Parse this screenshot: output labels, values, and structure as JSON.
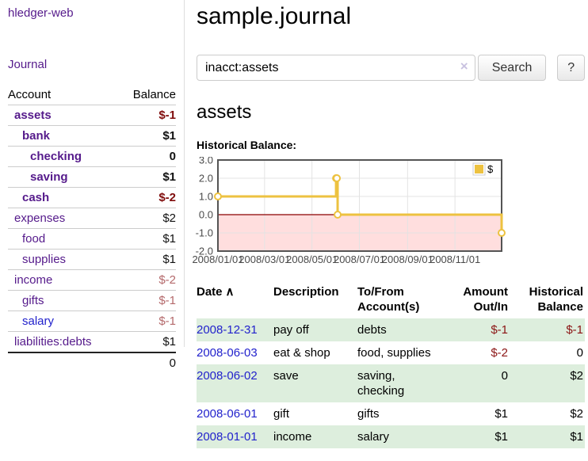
{
  "brand": "hledger-web",
  "nav": {
    "journal_label": "Journal"
  },
  "sidebar_table": {
    "headers": {
      "account": "Account",
      "balance": "Balance"
    },
    "rows": [
      {
        "name": "assets",
        "balance": "$-1",
        "depth": 0,
        "bold": true,
        "link_color": "purple",
        "balance_color": "darkred"
      },
      {
        "name": "bank",
        "balance": "$1",
        "depth": 1,
        "bold": true,
        "link_color": "purple",
        "balance_color": "black"
      },
      {
        "name": "checking",
        "balance": "0",
        "depth": 2,
        "bold": true,
        "link_color": "purple",
        "balance_color": "black"
      },
      {
        "name": "saving",
        "balance": "$1",
        "depth": 2,
        "bold": true,
        "link_color": "purple",
        "balance_color": "black"
      },
      {
        "name": "cash",
        "balance": "$-2",
        "depth": 1,
        "bold": true,
        "link_color": "purple",
        "balance_color": "darkred"
      },
      {
        "name": "expenses",
        "balance": "$2",
        "depth": 0,
        "bold": false,
        "link_color": "purple",
        "balance_color": "black"
      },
      {
        "name": "food",
        "balance": "$1",
        "depth": 1,
        "bold": false,
        "link_color": "purple",
        "balance_color": "black"
      },
      {
        "name": "supplies",
        "balance": "$1",
        "depth": 1,
        "bold": false,
        "link_color": "purple",
        "balance_color": "black"
      },
      {
        "name": "income",
        "balance": "$-2",
        "depth": 0,
        "bold": false,
        "link_color": "purple",
        "balance_color": "rose"
      },
      {
        "name": "gifts",
        "balance": "$-1",
        "depth": 1,
        "bold": false,
        "link_color": "purple",
        "balance_color": "rose"
      },
      {
        "name": "salary",
        "balance": "$-1",
        "depth": 1,
        "bold": false,
        "link_color": "blue",
        "balance_color": "rose"
      },
      {
        "name": "liabilities:debts",
        "balance": "$1",
        "depth": 0,
        "bold": false,
        "link_color": "purple",
        "balance_color": "black"
      }
    ],
    "total": "0"
  },
  "header": {
    "title": "sample.journal"
  },
  "search": {
    "value": "inacct:assets",
    "clear_icon": "×",
    "button_label": "Search",
    "help_label": "?"
  },
  "account_page": {
    "title": "assets",
    "chart_label": "Historical Balance:"
  },
  "chart_data": {
    "type": "line",
    "step": true,
    "title": "Historical Balance",
    "series": [
      {
        "name": "$",
        "color": "#edc240",
        "points": [
          {
            "date": "2008-01-01",
            "day": 0,
            "value": 1
          },
          {
            "date": "2008-06-01",
            "day": 152,
            "value": 2
          },
          {
            "date": "2008-06-02",
            "day": 153,
            "value": 2
          },
          {
            "date": "2008-06-03",
            "day": 154,
            "value": 0
          },
          {
            "date": "2008-12-31",
            "day": 365,
            "value": -1
          }
        ]
      }
    ],
    "x_ticks": [
      {
        "label": "2008/01/01",
        "day": 0
      },
      {
        "label": "2008/03/01",
        "day": 60
      },
      {
        "label": "2008/05/01",
        "day": 121
      },
      {
        "label": "2008/07/01",
        "day": 182
      },
      {
        "label": "2008/09/01",
        "day": 244
      },
      {
        "label": "2008/11/01",
        "day": 305
      }
    ],
    "y_ticks": [
      3.0,
      2.0,
      1.0,
      0.0,
      -1.0,
      -2.0
    ],
    "ylim": [
      -2,
      3
    ],
    "xlim_days": [
      0,
      365
    ],
    "grid": true,
    "legend": {
      "position": "top-right",
      "label": "$"
    },
    "negative_region_fill": "#ffdede",
    "zero_line_color": "#8b0000",
    "line_color": "#edc240"
  },
  "register_table": {
    "headers": {
      "date": "Date",
      "sort_indicator": "∧",
      "description": "Description",
      "tofrom": "To/From Account(s)",
      "amount": "Amount Out/In",
      "balance": "Historical Balance"
    },
    "rows": [
      {
        "date": "2008-12-31",
        "description": "pay off",
        "accounts": "debts",
        "amount": "$-1",
        "balance": "$-1"
      },
      {
        "date": "2008-06-03",
        "description": "eat & shop",
        "accounts": "food, supplies",
        "amount": "$-2",
        "balance": "0"
      },
      {
        "date": "2008-06-02",
        "description": "save",
        "accounts": "saving, checking",
        "amount": "0",
        "balance": "$2"
      },
      {
        "date": "2008-06-01",
        "description": "gift",
        "accounts": "gifts",
        "amount": "$1",
        "balance": "$2"
      },
      {
        "date": "2008-01-01",
        "description": "income",
        "accounts": "salary",
        "amount": "$1",
        "balance": "$1"
      }
    ]
  }
}
